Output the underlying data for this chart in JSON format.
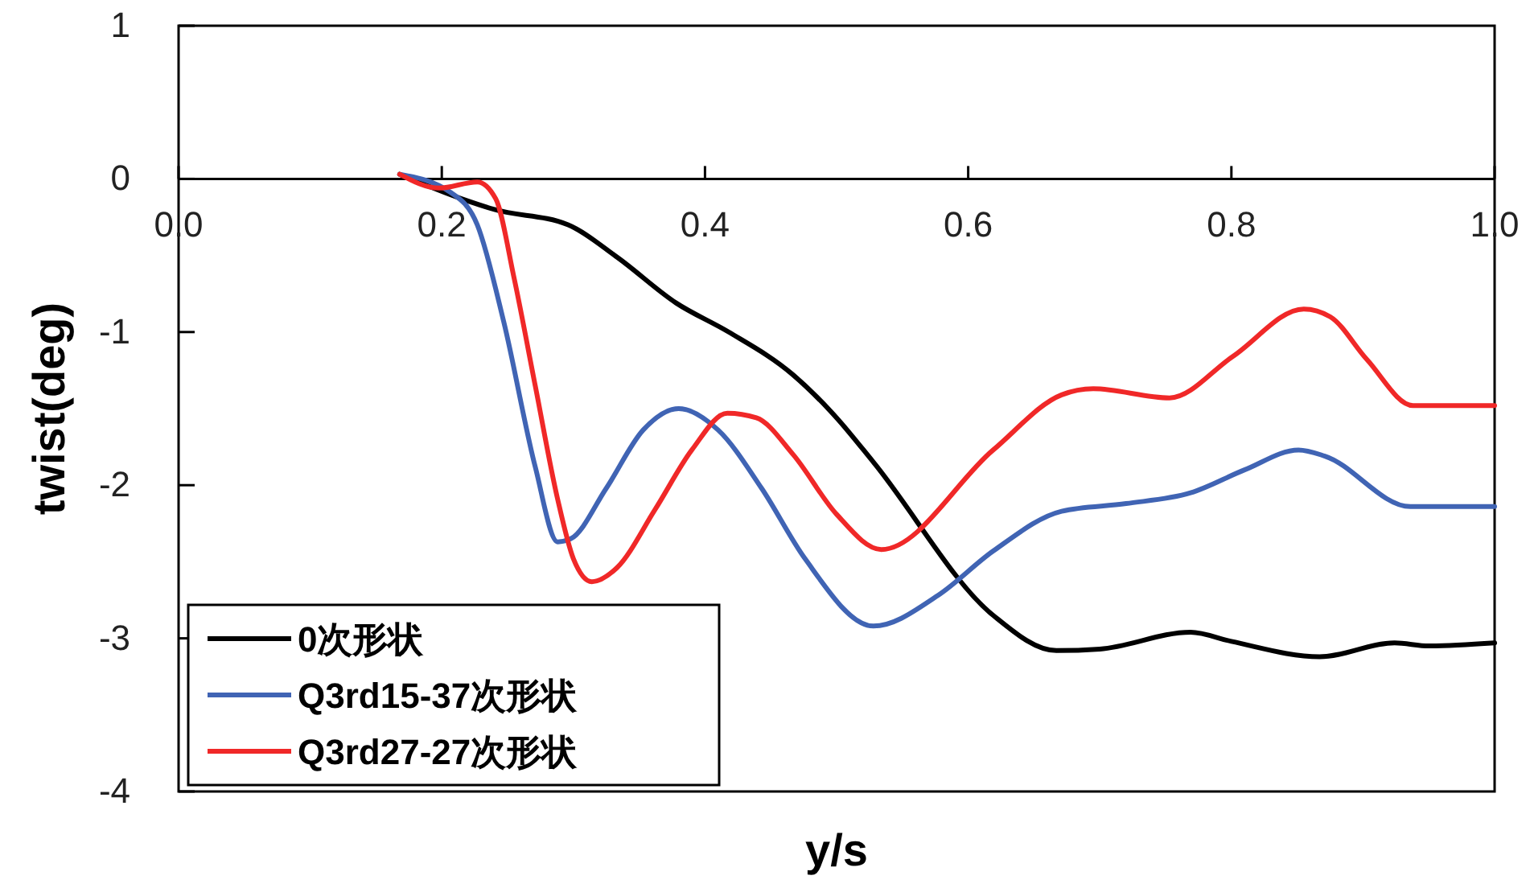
{
  "chart_data": {
    "type": "line",
    "xlabel": "y/s",
    "ylabel": "twist(deg)",
    "xlim": [
      0,
      1
    ],
    "ylim": [
      -4,
      1
    ],
    "xticks": [
      {
        "value": 0,
        "label": "0.0"
      },
      {
        "value": 0.2,
        "label": "0.2"
      },
      {
        "value": 0.4,
        "label": "0.4"
      },
      {
        "value": 0.6,
        "label": "0.6"
      },
      {
        "value": 0.8,
        "label": "0.8"
      },
      {
        "value": 1,
        "label": "1.0"
      }
    ],
    "yticks": [
      -4,
      -3,
      -2,
      -1,
      0,
      1
    ],
    "legend": "bottom left",
    "grid": false,
    "marker": "none",
    "line_style": "solid",
    "series": [
      {
        "name": "0次形状",
        "color": "#000000",
        "x": [
          0.168,
          0.215,
          0.24,
          0.296,
          0.333,
          0.378,
          0.418,
          0.467,
          0.5,
          0.528,
          0.619,
          0.667,
          0.7,
          0.769,
          0.8,
          0.867,
          0.924,
          0.95,
          1.0
        ],
        "values": [
          0.03,
          -0.13,
          -0.2,
          -0.3,
          -0.51,
          -0.81,
          -1.0,
          -1.28,
          -1.56,
          -1.85,
          -2.85,
          -3.08,
          -3.07,
          -2.96,
          -3.02,
          -3.12,
          -3.03,
          -3.05,
          -3.03
        ]
      },
      {
        "name": "Q3rd15-37次形状",
        "color": "#4064b4",
        "x": [
          0.168,
          0.207,
          0.227,
          0.247,
          0.271,
          0.288,
          0.298,
          0.325,
          0.353,
          0.38,
          0.41,
          0.443,
          0.476,
          0.528,
          0.577,
          0.619,
          0.671,
          0.72,
          0.769,
          0.81,
          0.851,
          0.871,
          0.936,
          1.0
        ],
        "values": [
          0.03,
          -0.09,
          -0.3,
          -0.93,
          -1.88,
          -2.37,
          -2.35,
          -2.02,
          -1.64,
          -1.5,
          -1.64,
          -2.02,
          -2.48,
          -2.92,
          -2.72,
          -2.43,
          -2.17,
          -2.12,
          -2.05,
          -1.9,
          -1.77,
          -1.81,
          -2.14,
          -2.14
        ]
      },
      {
        "name": "Q3rd27-27次形状",
        "color": "#f02828",
        "x": [
          0.168,
          0.198,
          0.227,
          0.241,
          0.255,
          0.271,
          0.288,
          0.3,
          0.314,
          0.333,
          0.362,
          0.39,
          0.417,
          0.439,
          0.467,
          0.5,
          0.534,
          0.619,
          0.671,
          0.695,
          0.753,
          0.801,
          0.855,
          0.875,
          0.903,
          0.938,
          1.0
        ],
        "values": [
          0.03,
          -0.06,
          -0.02,
          -0.13,
          -0.65,
          -1.35,
          -2.09,
          -2.48,
          -2.63,
          -2.54,
          -2.16,
          -1.77,
          -1.53,
          -1.56,
          -1.8,
          -2.19,
          -2.42,
          -1.77,
          -1.41,
          -1.37,
          -1.43,
          -1.16,
          -0.85,
          -0.9,
          -1.18,
          -1.48,
          -1.48
        ]
      }
    ]
  }
}
